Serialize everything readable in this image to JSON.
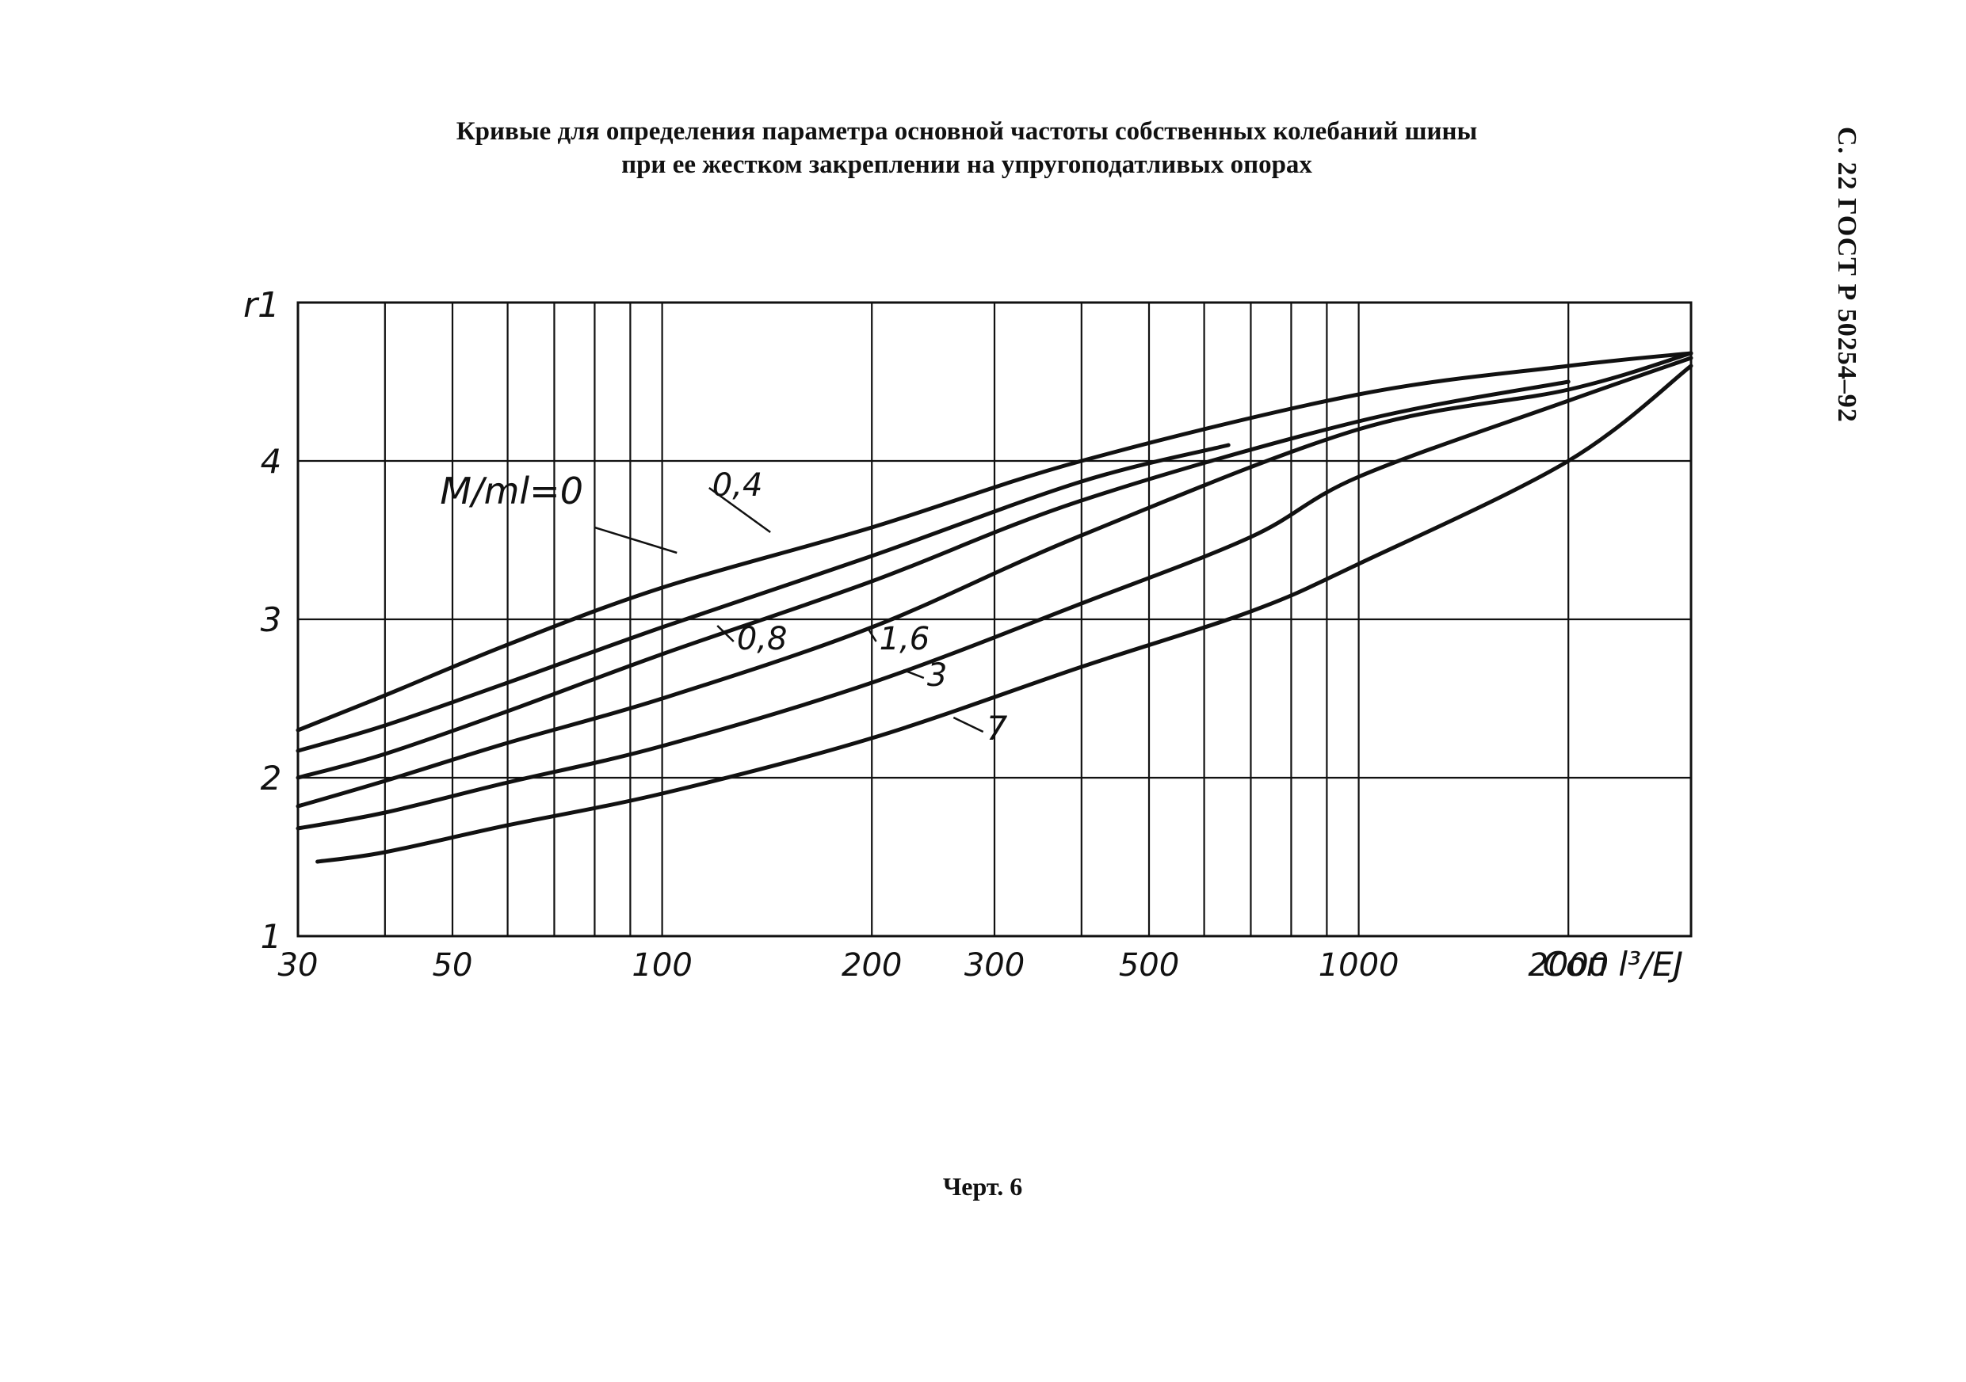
{
  "page": {
    "title_line1": "Кривые для определения параметра основной частоты собственных колебаний шины",
    "title_line2": "при ее жестком закреплении на упругоподатливых опорах",
    "side_header": "С. 22 ГОСТ Р 50254–92",
    "caption": "Черт. 6"
  },
  "chart_data": {
    "type": "line",
    "title": "Кривые для определения параметра основной частоты собственных колебаний шины при ее жестком закреплении на упругоподатливых опорах",
    "ylabel": "r1",
    "xlabel": "Cоп l³/EJ",
    "x_scale": "log",
    "xlim": [
      30,
      3000
    ],
    "ylim": [
      1,
      5
    ],
    "grid": true,
    "legend": "inline labels",
    "x_ticks": [
      {
        "value": 30,
        "label": "30"
      },
      {
        "value": 50,
        "label": "50"
      },
      {
        "value": 100,
        "label": "100"
      },
      {
        "value": 200,
        "label": "200"
      },
      {
        "value": 300,
        "label": "300"
      },
      {
        "value": 500,
        "label": "500"
      },
      {
        "value": 1000,
        "label": "1000"
      },
      {
        "value": 2000,
        "label": "2000"
      }
    ],
    "x_gridlines": [
      30,
      40,
      50,
      60,
      70,
      80,
      90,
      100,
      200,
      300,
      400,
      500,
      600,
      700,
      800,
      900,
      1000,
      2000,
      3000
    ],
    "y_ticks": [
      {
        "value": 1,
        "label": "1"
      },
      {
        "value": 2,
        "label": "2"
      },
      {
        "value": 3,
        "label": "3"
      },
      {
        "value": 4,
        "label": "4"
      }
    ],
    "y_gridlines": [
      2,
      3,
      4
    ],
    "series": [
      {
        "name": "M/ml=0",
        "x": [
          30,
          40,
          60,
          100,
          200,
          400,
          1000,
          2000,
          3000
        ],
        "y": [
          2.3,
          2.52,
          2.84,
          3.2,
          3.58,
          4.0,
          4.42,
          4.6,
          4.68
        ]
      },
      {
        "name": "0,4",
        "x": [
          30,
          40,
          60,
          100,
          200,
          400,
          650
        ],
        "y": [
          2.17,
          2.33,
          2.6,
          2.95,
          3.4,
          3.87,
          4.1
        ]
      },
      {
        "name": "0,8",
        "x": [
          30,
          40,
          60,
          100,
          200,
          400,
          1000,
          2000
        ],
        "y": [
          2.0,
          2.15,
          2.42,
          2.78,
          3.24,
          3.75,
          4.25,
          4.5
        ]
      },
      {
        "name": "1,6",
        "x": [
          30,
          40,
          60,
          100,
          200,
          400,
          1000,
          2000,
          3000
        ],
        "y": [
          1.82,
          1.98,
          2.22,
          2.5,
          2.95,
          3.53,
          4.2,
          4.45,
          4.68
        ]
      },
      {
        "name": "3",
        "x": [
          30,
          40,
          60,
          100,
          200,
          400,
          700,
          1000,
          2000,
          3000
        ],
        "y": [
          1.68,
          1.78,
          1.97,
          2.2,
          2.6,
          3.1,
          3.52,
          3.9,
          4.38,
          4.65
        ]
      },
      {
        "name": "7",
        "x": [
          32,
          40,
          60,
          100,
          200,
          400,
          700,
          1000,
          2000,
          3000
        ],
        "y": [
          1.47,
          1.53,
          1.7,
          1.9,
          2.25,
          2.7,
          3.05,
          3.35,
          4.0,
          4.6
        ]
      }
    ]
  }
}
